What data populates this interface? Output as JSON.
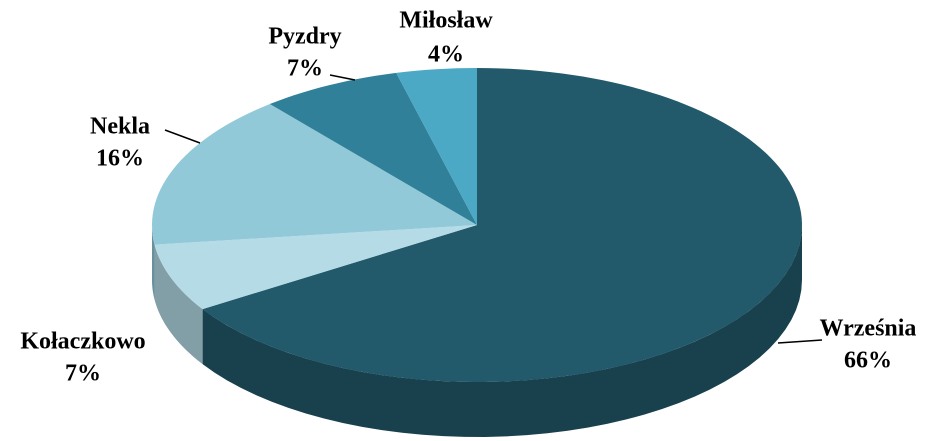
{
  "chart_data": {
    "type": "pie3d",
    "categories": [
      "Września",
      "Kołaczkowo",
      "Nekla",
      "Pyzdry",
      "Miłosław"
    ],
    "values": [
      66,
      7,
      16,
      7,
      4
    ],
    "value_labels": [
      "66%",
      "7%",
      "16%",
      "7%",
      "4%"
    ],
    "colors": [
      "#235a6b",
      "#b5dbe6",
      "#92c9d9",
      "#2f8098",
      "#4ba9c5"
    ]
  }
}
